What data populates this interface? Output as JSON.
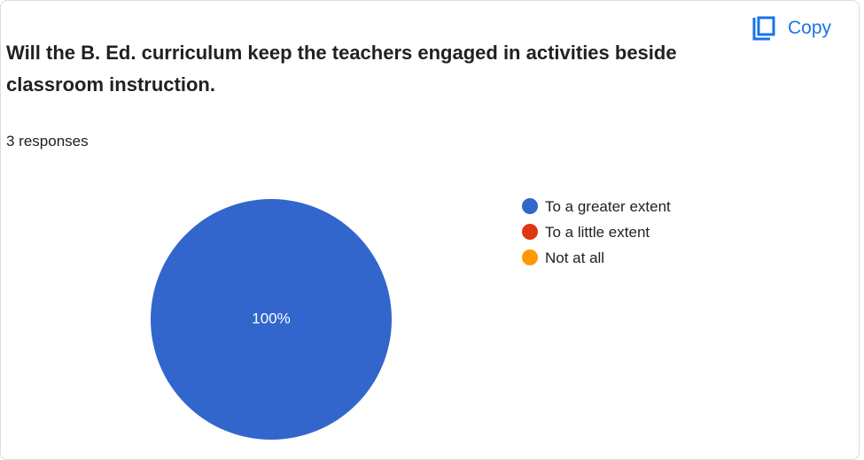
{
  "question": {
    "title": "Will  the B. Ed. curriculum keep the teachers engaged in activities beside classroom instruction.",
    "responses": "3 responses"
  },
  "copy": {
    "label": "Copy",
    "icon": "copy-icon",
    "color": "#1a73e8"
  },
  "chart_data": {
    "type": "pie",
    "title": "",
    "slices": [
      {
        "label": "To a greater extent",
        "value": 100,
        "color": "#3366cc"
      },
      {
        "label": "To a little extent",
        "value": 0,
        "color": "#dc3912"
      },
      {
        "label": "Not at all",
        "value": 0,
        "color": "#ff9900"
      }
    ],
    "data_labels": [
      "100%"
    ],
    "legend_position": "right"
  }
}
